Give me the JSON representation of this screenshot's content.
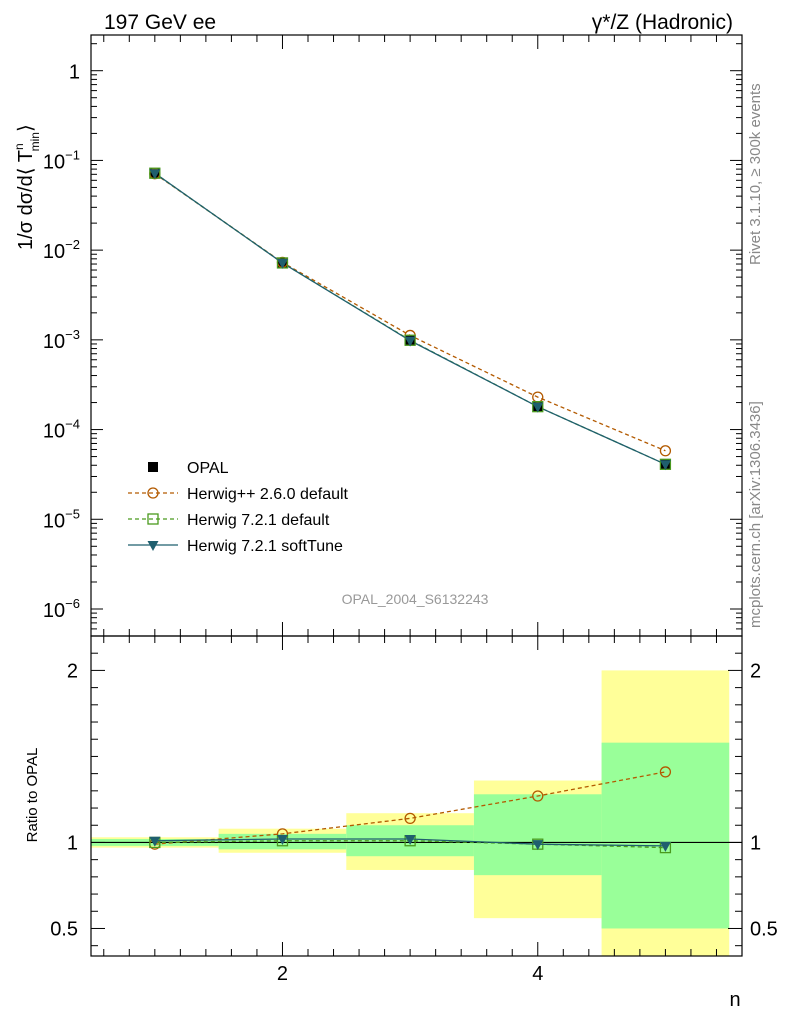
{
  "header": {
    "left": "197 GeV ee",
    "right": "γ*/Z (Hadronic)"
  },
  "side_labels": {
    "rivet": "Rivet 3.1.10, ≥ 300k events",
    "mcplots": "mcplots.cern.ch [arXiv:1306.3436]"
  },
  "analysis_label": "OPAL_2004_S6132243",
  "colors": {
    "data": "#000000",
    "herwigpp": "#b35a00",
    "herwig721": "#4a9a1e",
    "softtune": "#1f5f6e",
    "band_outer": "#ffff99",
    "band_inner": "#99ff99"
  },
  "chart_data": [
    {
      "type": "line",
      "panel": "main",
      "ylabel": "1/σ dσ/d⟨ T",
      "ylabel_sup": "n",
      "ylabel_sub": "min",
      "ylabel_close": "⟩",
      "yscale": "log",
      "ylim": [
        5e-07,
        2.5
      ],
      "xlim": [
        0.5,
        5.6
      ],
      "x": [
        1,
        2,
        3,
        4,
        5
      ],
      "yticks": [
        {
          "value": 1,
          "base": "1",
          "exp": ""
        },
        {
          "value": 0.1,
          "base": "10",
          "exp": "−1"
        },
        {
          "value": 0.01,
          "base": "10",
          "exp": "−2"
        },
        {
          "value": 0.001,
          "base": "10",
          "exp": "−3"
        },
        {
          "value": 0.0001,
          "base": "10",
          "exp": "−4"
        },
        {
          "value": 1e-05,
          "base": "10",
          "exp": "−5"
        },
        {
          "value": 1e-06,
          "base": "10",
          "exp": "−6"
        }
      ],
      "series": [
        {
          "name": "OPAL",
          "style": "data",
          "values": [
            0.072,
            0.0072,
            0.00098,
            0.00018,
            4.1e-05
          ]
        },
        {
          "name": "Herwig++ 2.6.0 default",
          "style": "herwigpp",
          "values": [
            0.071,
            0.0073,
            0.00112,
            0.00023,
            5.8e-05
          ]
        },
        {
          "name": "Herwig 7.2.1 default",
          "style": "herwig721",
          "values": [
            0.072,
            0.0072,
            0.00099,
            0.00018,
            4.1e-05
          ]
        },
        {
          "name": "Herwig 7.2.1 softTune",
          "style": "softtune",
          "values": [
            0.072,
            0.0072,
            0.00098,
            0.00018,
            4.1e-05
          ]
        }
      ]
    },
    {
      "type": "line",
      "panel": "ratio",
      "ylabel": "Ratio to OPAL",
      "xlabel": "n",
      "ylim": [
        0.34,
        2.2
      ],
      "xlim": [
        0.5,
        5.6
      ],
      "x": [
        1,
        2,
        3,
        4,
        5
      ],
      "bin_edges": [
        0.5,
        1.5,
        2.5,
        3.5,
        4.5,
        5.5
      ],
      "xticks": [
        2,
        4
      ],
      "yticks": [
        0.5,
        1,
        2
      ],
      "band_outer": [
        [
          0.97,
          1.03
        ],
        [
          0.94,
          1.08
        ],
        [
          0.84,
          1.17
        ],
        [
          0.56,
          1.36
        ],
        [
          0.34,
          2.0
        ]
      ],
      "band_inner": [
        [
          0.98,
          1.02
        ],
        [
          0.96,
          1.05
        ],
        [
          0.92,
          1.1
        ],
        [
          0.81,
          1.28
        ],
        [
          0.5,
          1.58
        ]
      ],
      "series": [
        {
          "name": "Herwig++ 2.6.0 default",
          "style": "herwigpp",
          "values": [
            0.99,
            1.05,
            1.14,
            1.27,
            1.41
          ]
        },
        {
          "name": "Herwig 7.2.1 default",
          "style": "herwig721",
          "values": [
            1.0,
            1.01,
            1.01,
            0.99,
            0.97
          ]
        },
        {
          "name": "Herwig 7.2.1 softTune",
          "style": "softtune",
          "values": [
            1.01,
            1.02,
            1.02,
            0.99,
            0.98
          ]
        }
      ]
    }
  ]
}
